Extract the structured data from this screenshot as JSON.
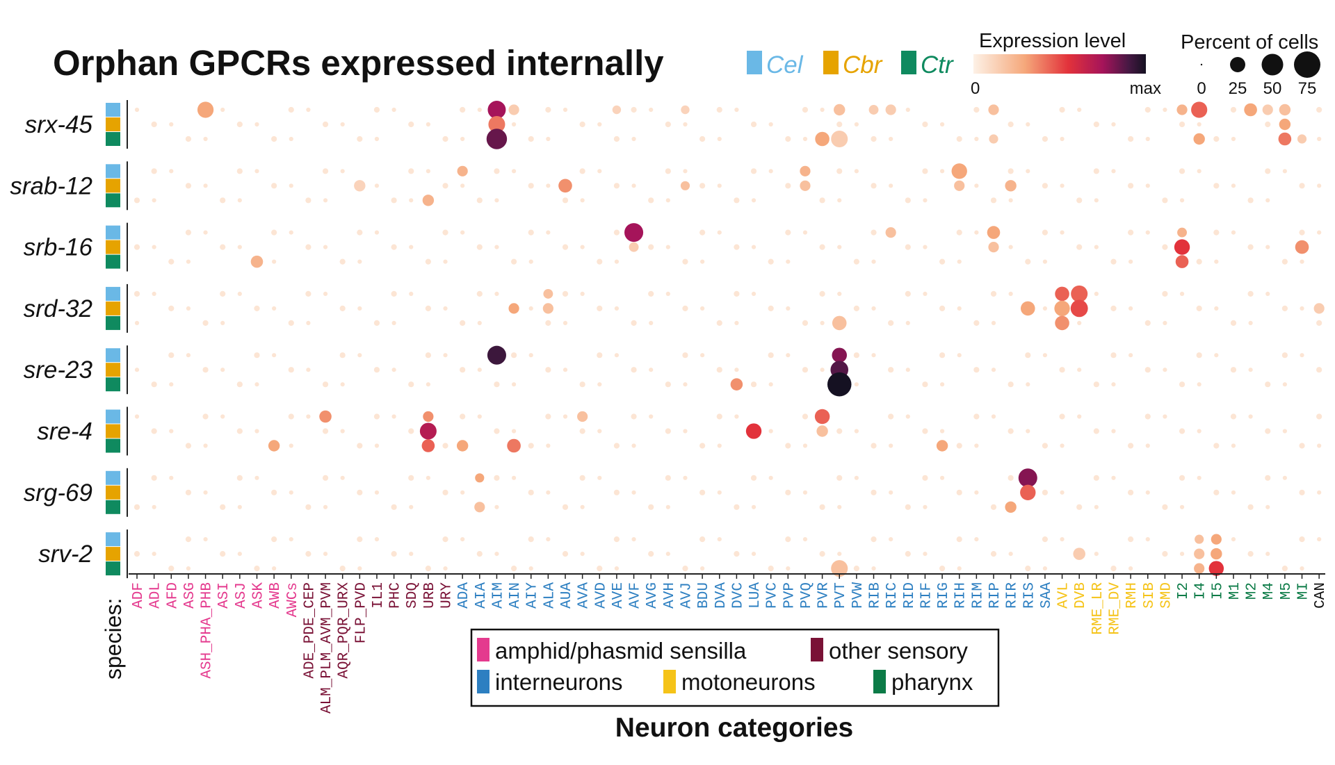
{
  "chart_data": {
    "type": "dotplot",
    "title": "Orphan GPCRs expressed internally",
    "xlabel": "Neuron categories",
    "species_axis_label": "species:",
    "species": [
      {
        "name": "Cel",
        "color": "#6ab8e6"
      },
      {
        "name": "Cbr",
        "color": "#e6a300"
      },
      {
        "name": "Ctr",
        "color": "#0f8a5f"
      }
    ],
    "expression_legend": {
      "title": "Expression level",
      "min_label": "0",
      "max_label": "max"
    },
    "size_legend": {
      "title": "Percent of cells",
      "values": [
        0,
        25,
        50,
        75
      ],
      "labels": [
        "0",
        "25",
        "50",
        "75"
      ]
    },
    "category_legend": [
      {
        "name": "amphid/phasmid sensilla",
        "color": "#e43a8e"
      },
      {
        "name": "other sensory",
        "color": "#7a1236"
      },
      {
        "name": "interneurons",
        "color": "#2d7fc1"
      },
      {
        "name": "motoneurons",
        "color": "#f5c318"
      },
      {
        "name": "pharynx",
        "color": "#0c7b47"
      }
    ],
    "category_colors": {
      "amphid": "#e43a8e",
      "other": "#7a1236",
      "inter": "#2d7fc1",
      "moto": "#f5c318",
      "pharynx": "#0c7b47",
      "none": "#111111"
    },
    "neurons": [
      {
        "name": "ADF",
        "cat": "amphid"
      },
      {
        "name": "ADL",
        "cat": "amphid"
      },
      {
        "name": "AFD",
        "cat": "amphid"
      },
      {
        "name": "ASG",
        "cat": "amphid"
      },
      {
        "name": "ASH_PHA_PHB",
        "cat": "amphid"
      },
      {
        "name": "ASI",
        "cat": "amphid"
      },
      {
        "name": "ASJ",
        "cat": "amphid"
      },
      {
        "name": "ASK",
        "cat": "amphid"
      },
      {
        "name": "AWB",
        "cat": "amphid"
      },
      {
        "name": "AWCs",
        "cat": "amphid"
      },
      {
        "name": "ADE_PDE_CEP",
        "cat": "other"
      },
      {
        "name": "ALM_PLM_AVM_PVM",
        "cat": "other"
      },
      {
        "name": "AQR_PQR_URX",
        "cat": "other"
      },
      {
        "name": "FLP_PVD",
        "cat": "other"
      },
      {
        "name": "IL1",
        "cat": "other"
      },
      {
        "name": "PHC",
        "cat": "other"
      },
      {
        "name": "SDQ",
        "cat": "other"
      },
      {
        "name": "URB",
        "cat": "other"
      },
      {
        "name": "URY",
        "cat": "other"
      },
      {
        "name": "ADA",
        "cat": "inter"
      },
      {
        "name": "AIA",
        "cat": "inter"
      },
      {
        "name": "AIM",
        "cat": "inter"
      },
      {
        "name": "AIN",
        "cat": "inter"
      },
      {
        "name": "AIY",
        "cat": "inter"
      },
      {
        "name": "ALA",
        "cat": "inter"
      },
      {
        "name": "AUA",
        "cat": "inter"
      },
      {
        "name": "AVA",
        "cat": "inter"
      },
      {
        "name": "AVD",
        "cat": "inter"
      },
      {
        "name": "AVE",
        "cat": "inter"
      },
      {
        "name": "AVF",
        "cat": "inter"
      },
      {
        "name": "AVG",
        "cat": "inter"
      },
      {
        "name": "AVH",
        "cat": "inter"
      },
      {
        "name": "AVJ",
        "cat": "inter"
      },
      {
        "name": "BDU",
        "cat": "inter"
      },
      {
        "name": "DVA",
        "cat": "inter"
      },
      {
        "name": "DVC",
        "cat": "inter"
      },
      {
        "name": "LUA",
        "cat": "inter"
      },
      {
        "name": "PVC",
        "cat": "inter"
      },
      {
        "name": "PVP",
        "cat": "inter"
      },
      {
        "name": "PVQ",
        "cat": "inter"
      },
      {
        "name": "PVR",
        "cat": "inter"
      },
      {
        "name": "PVT",
        "cat": "inter"
      },
      {
        "name": "PVW",
        "cat": "inter"
      },
      {
        "name": "RIB",
        "cat": "inter"
      },
      {
        "name": "RIC",
        "cat": "inter"
      },
      {
        "name": "RID",
        "cat": "inter"
      },
      {
        "name": "RIF",
        "cat": "inter"
      },
      {
        "name": "RIG",
        "cat": "inter"
      },
      {
        "name": "RIH",
        "cat": "inter"
      },
      {
        "name": "RIM",
        "cat": "inter"
      },
      {
        "name": "RIP",
        "cat": "inter"
      },
      {
        "name": "RIR",
        "cat": "inter"
      },
      {
        "name": "RIS",
        "cat": "inter"
      },
      {
        "name": "SAA",
        "cat": "inter"
      },
      {
        "name": "AVL",
        "cat": "moto"
      },
      {
        "name": "DVB",
        "cat": "moto"
      },
      {
        "name": "RME_LR",
        "cat": "moto"
      },
      {
        "name": "RME_DV",
        "cat": "moto"
      },
      {
        "name": "RMH",
        "cat": "moto"
      },
      {
        "name": "SIB",
        "cat": "moto"
      },
      {
        "name": "SMD",
        "cat": "moto"
      },
      {
        "name": "I2",
        "cat": "pharynx"
      },
      {
        "name": "I4",
        "cat": "pharynx"
      },
      {
        "name": "I5",
        "cat": "pharynx"
      },
      {
        "name": "M1",
        "cat": "pharynx"
      },
      {
        "name": "M2",
        "cat": "pharynx"
      },
      {
        "name": "M4",
        "cat": "pharynx"
      },
      {
        "name": "M5",
        "cat": "pharynx"
      },
      {
        "name": "MI",
        "cat": "pharynx"
      },
      {
        "name": "CAN",
        "cat": "none"
      }
    ],
    "genes": [
      "srx-45",
      "srab-12",
      "srb-16",
      "srd-32",
      "sre-23",
      "sre-4",
      "srg-69",
      "srv-2"
    ],
    "size_scale_max": 75,
    "background_dot": {
      "pct": 2,
      "expr": 0.05
    },
    "notable_points": [
      {
        "gene": "srx-45",
        "species": "Cel",
        "neuron": "ASH_PHA_PHB",
        "pct": 28,
        "expr": 0.3
      },
      {
        "gene": "srx-45",
        "species": "Cel",
        "neuron": "AIM",
        "pct": 35,
        "expr": 0.75
      },
      {
        "gene": "srx-45",
        "species": "Cbr",
        "neuron": "AIM",
        "pct": 30,
        "expr": 0.4
      },
      {
        "gene": "srx-45",
        "species": "Ctr",
        "neuron": "AIM",
        "pct": 45,
        "expr": 0.85
      },
      {
        "gene": "srx-45",
        "species": "Cel",
        "neuron": "AIN",
        "pct": 12,
        "expr": 0.15
      },
      {
        "gene": "srx-45",
        "species": "Cel",
        "neuron": "AVE",
        "pct": 8,
        "expr": 0.12
      },
      {
        "gene": "srx-45",
        "species": "Cel",
        "neuron": "AVJ",
        "pct": 8,
        "expr": 0.12
      },
      {
        "gene": "srx-45",
        "species": "Ctr",
        "neuron": "PVR",
        "pct": 22,
        "expr": 0.3
      },
      {
        "gene": "srx-45",
        "species": "Cel",
        "neuron": "PVT",
        "pct": 14,
        "expr": 0.2
      },
      {
        "gene": "srx-45",
        "species": "Ctr",
        "neuron": "PVT",
        "pct": 30,
        "expr": 0.15
      },
      {
        "gene": "srx-45",
        "species": "Cel",
        "neuron": "RIB",
        "pct": 10,
        "expr": 0.15
      },
      {
        "gene": "srx-45",
        "species": "Cel",
        "neuron": "RIC",
        "pct": 12,
        "expr": 0.15
      },
      {
        "gene": "srx-45",
        "species": "Cel",
        "neuron": "RIP",
        "pct": 12,
        "expr": 0.2
      },
      {
        "gene": "srx-45",
        "species": "Ctr",
        "neuron": "RIP",
        "pct": 9,
        "expr": 0.15
      },
      {
        "gene": "srx-45",
        "species": "Cel",
        "neuron": "I2",
        "pct": 12,
        "expr": 0.25
      },
      {
        "gene": "srx-45",
        "species": "Cel",
        "neuron": "I4",
        "pct": 28,
        "expr": 0.45
      },
      {
        "gene": "srx-45",
        "species": "Ctr",
        "neuron": "I4",
        "pct": 14,
        "expr": 0.3
      },
      {
        "gene": "srx-45",
        "species": "Cel",
        "neuron": "M2",
        "pct": 18,
        "expr": 0.3
      },
      {
        "gene": "srx-45",
        "species": "Cel",
        "neuron": "M4",
        "pct": 12,
        "expr": 0.15
      },
      {
        "gene": "srx-45",
        "species": "Cel",
        "neuron": "M5",
        "pct": 14,
        "expr": 0.2
      },
      {
        "gene": "srx-45",
        "species": "Cbr",
        "neuron": "M5",
        "pct": 14,
        "expr": 0.3
      },
      {
        "gene": "srx-45",
        "species": "Ctr",
        "neuron": "M5",
        "pct": 18,
        "expr": 0.4
      },
      {
        "gene": "srx-45",
        "species": "Ctr",
        "neuron": "MI",
        "pct": 9,
        "expr": 0.15
      },
      {
        "gene": "srab-12",
        "species": "Cbr",
        "neuron": "FLP_PVD",
        "pct": 14,
        "expr": 0.12
      },
      {
        "gene": "srab-12",
        "species": "Ctr",
        "neuron": "URB",
        "pct": 14,
        "expr": 0.25
      },
      {
        "gene": "srab-12",
        "species": "Cel",
        "neuron": "ADA",
        "pct": 12,
        "expr": 0.25
      },
      {
        "gene": "srab-12",
        "species": "Cbr",
        "neuron": "AUA",
        "pct": 20,
        "expr": 0.35
      },
      {
        "gene": "srab-12",
        "species": "Cbr",
        "neuron": "AVJ",
        "pct": 9,
        "expr": 0.2
      },
      {
        "gene": "srab-12",
        "species": "Cel",
        "neuron": "PVQ",
        "pct": 12,
        "expr": 0.25
      },
      {
        "gene": "srab-12",
        "species": "Cbr",
        "neuron": "PVQ",
        "pct": 12,
        "expr": 0.2
      },
      {
        "gene": "srab-12",
        "species": "Cel",
        "neuron": "RIH",
        "pct": 26,
        "expr": 0.3
      },
      {
        "gene": "srab-12",
        "species": "Cbr",
        "neuron": "RIH",
        "pct": 12,
        "expr": 0.2
      },
      {
        "gene": "srab-12",
        "species": "Cbr",
        "neuron": "RIR",
        "pct": 14,
        "expr": 0.25
      },
      {
        "gene": "srb-16",
        "species": "Cel",
        "neuron": "AVF",
        "pct": 38,
        "expr": 0.75
      },
      {
        "gene": "srb-16",
        "species": "Cbr",
        "neuron": "AVF",
        "pct": 10,
        "expr": 0.15
      },
      {
        "gene": "srb-16",
        "species": "Ctr",
        "neuron": "ASK",
        "pct": 16,
        "expr": 0.25
      },
      {
        "gene": "srb-16",
        "species": "Cel",
        "neuron": "RIC",
        "pct": 12,
        "expr": 0.2
      },
      {
        "gene": "srb-16",
        "species": "Cel",
        "neuron": "RIP",
        "pct": 18,
        "expr": 0.3
      },
      {
        "gene": "srb-16",
        "species": "Cbr",
        "neuron": "RIP",
        "pct": 12,
        "expr": 0.2
      },
      {
        "gene": "srb-16",
        "species": "Cel",
        "neuron": "I2",
        "pct": 10,
        "expr": 0.25
      },
      {
        "gene": "srb-16",
        "species": "Cbr",
        "neuron": "I2",
        "pct": 26,
        "expr": 0.55
      },
      {
        "gene": "srb-16",
        "species": "Ctr",
        "neuron": "I2",
        "pct": 18,
        "expr": 0.45
      },
      {
        "gene": "srb-16",
        "species": "Cbr",
        "neuron": "MI",
        "pct": 20,
        "expr": 0.35
      },
      {
        "gene": "srd-32",
        "species": "Cel",
        "neuron": "ALA",
        "pct": 10,
        "expr": 0.2
      },
      {
        "gene": "srd-32",
        "species": "Cbr",
        "neuron": "ALA",
        "pct": 12,
        "expr": 0.2
      },
      {
        "gene": "srd-32",
        "species": "Cbr",
        "neuron": "AIN",
        "pct": 12,
        "expr": 0.3
      },
      {
        "gene": "srd-32",
        "species": "Ctr",
        "neuron": "PVT",
        "pct": 22,
        "expr": 0.2
      },
      {
        "gene": "srd-32",
        "species": "Cbr",
        "neuron": "RIS",
        "pct": 22,
        "expr": 0.3
      },
      {
        "gene": "srd-32",
        "species": "Cel",
        "neuron": "AVL",
        "pct": 22,
        "expr": 0.45
      },
      {
        "gene": "srd-32",
        "species": "Cbr",
        "neuron": "AVL",
        "pct": 26,
        "expr": 0.3
      },
      {
        "gene": "srd-32",
        "species": "Ctr",
        "neuron": "AVL",
        "pct": 22,
        "expr": 0.35
      },
      {
        "gene": "srd-32",
        "species": "Cel",
        "neuron": "DVB",
        "pct": 30,
        "expr": 0.45
      },
      {
        "gene": "srd-32",
        "species": "Cbr",
        "neuron": "DVB",
        "pct": 32,
        "expr": 0.5
      },
      {
        "gene": "srd-32",
        "species": "Cbr",
        "neuron": "CAN",
        "pct": 12,
        "expr": 0.15
      },
      {
        "gene": "sre-23",
        "species": "Cel",
        "neuron": "AIM",
        "pct": 38,
        "expr": 0.92
      },
      {
        "gene": "sre-23",
        "species": "Cel",
        "neuron": "PVT",
        "pct": 24,
        "expr": 0.8
      },
      {
        "gene": "sre-23",
        "species": "Cbr",
        "neuron": "PVT",
        "pct": 34,
        "expr": 0.88
      },
      {
        "gene": "sre-23",
        "species": "Ctr",
        "neuron": "PVT",
        "pct": 62,
        "expr": 1.0
      },
      {
        "gene": "sre-23",
        "species": "Ctr",
        "neuron": "DVC",
        "pct": 16,
        "expr": 0.35
      },
      {
        "gene": "sre-4",
        "species": "Cel",
        "neuron": "ALM_PLM_AVM_PVM",
        "pct": 16,
        "expr": 0.35
      },
      {
        "gene": "sre-4",
        "species": "Cel",
        "neuron": "URB",
        "pct": 12,
        "expr": 0.35
      },
      {
        "gene": "sre-4",
        "species": "Cbr",
        "neuron": "URB",
        "pct": 30,
        "expr": 0.7
      },
      {
        "gene": "sre-4",
        "species": "Ctr",
        "neuron": "URB",
        "pct": 18,
        "expr": 0.45
      },
      {
        "gene": "sre-4",
        "species": "Ctr",
        "neuron": "AWB",
        "pct": 14,
        "expr": 0.3
      },
      {
        "gene": "sre-4",
        "species": "Ctr",
        "neuron": "ADA",
        "pct": 14,
        "expr": 0.3
      },
      {
        "gene": "sre-4",
        "species": "Ctr",
        "neuron": "AIN",
        "pct": 20,
        "expr": 0.4
      },
      {
        "gene": "sre-4",
        "species": "Cel",
        "neuron": "AVA",
        "pct": 12,
        "expr": 0.2
      },
      {
        "gene": "sre-4",
        "species": "Cbr",
        "neuron": "LUA",
        "pct": 26,
        "expr": 0.55
      },
      {
        "gene": "sre-4",
        "species": "Cel",
        "neuron": "PVR",
        "pct": 24,
        "expr": 0.45
      },
      {
        "gene": "sre-4",
        "species": "Cbr",
        "neuron": "PVR",
        "pct": 14,
        "expr": 0.2
      },
      {
        "gene": "sre-4",
        "species": "Ctr",
        "neuron": "RIG",
        "pct": 14,
        "expr": 0.3
      },
      {
        "gene": "srg-69",
        "species": "Cel",
        "neuron": "AIA",
        "pct": 9,
        "expr": 0.3
      },
      {
        "gene": "srg-69",
        "species": "Ctr",
        "neuron": "AIA",
        "pct": 12,
        "expr": 0.2
      },
      {
        "gene": "srg-69",
        "species": "Cel",
        "neuron": "RIS",
        "pct": 38,
        "expr": 0.8
      },
      {
        "gene": "srg-69",
        "species": "Cbr",
        "neuron": "RIS",
        "pct": 26,
        "expr": 0.45
      },
      {
        "gene": "srg-69",
        "species": "Ctr",
        "neuron": "RIR",
        "pct": 14,
        "expr": 0.3
      },
      {
        "gene": "srv-2",
        "species": "Cbr",
        "neuron": "DVB",
        "pct": 16,
        "expr": 0.15
      },
      {
        "gene": "srv-2",
        "species": "Ctr",
        "neuron": "PVT",
        "pct": 30,
        "expr": 0.2
      },
      {
        "gene": "srv-2",
        "species": "Cel",
        "neuron": "I4",
        "pct": 9,
        "expr": 0.2
      },
      {
        "gene": "srv-2",
        "species": "Cbr",
        "neuron": "I4",
        "pct": 12,
        "expr": 0.2
      },
      {
        "gene": "srv-2",
        "species": "Ctr",
        "neuron": "I4",
        "pct": 12,
        "expr": 0.25
      },
      {
        "gene": "srv-2",
        "species": "Cel",
        "neuron": "I5",
        "pct": 12,
        "expr": 0.3
      },
      {
        "gene": "srv-2",
        "species": "Cbr",
        "neuron": "I5",
        "pct": 14,
        "expr": 0.3
      },
      {
        "gene": "srv-2",
        "species": "Ctr",
        "neuron": "I5",
        "pct": 24,
        "expr": 0.55
      }
    ]
  }
}
